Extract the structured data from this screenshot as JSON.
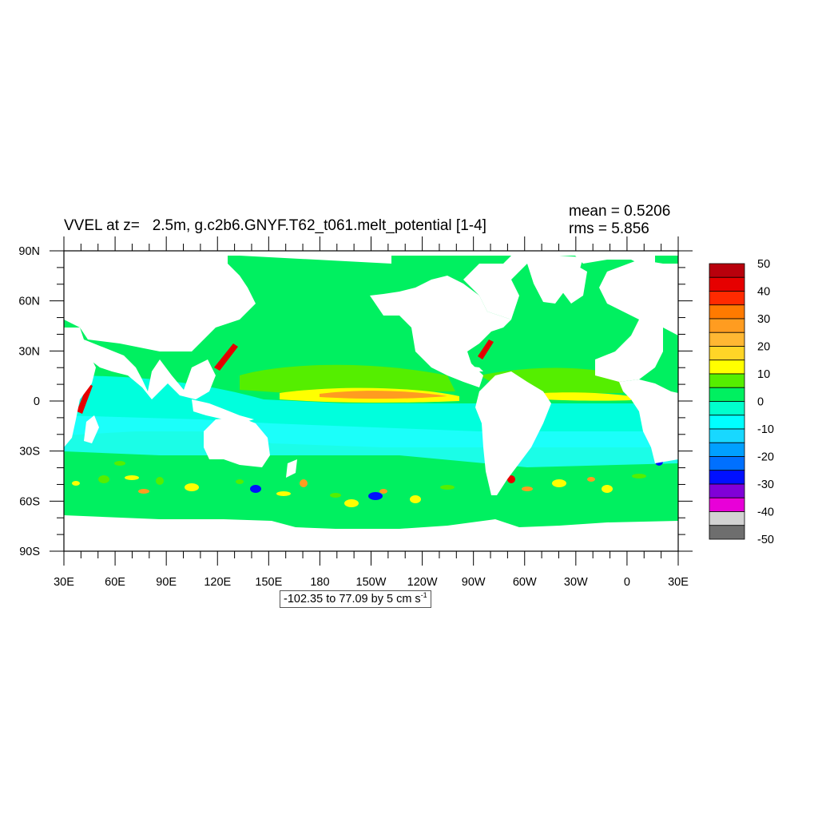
{
  "plot": {
    "title": "VVEL at z=   2.5m, g.c2b6.GNYF.T62_t061.melt_potential [1-4]",
    "mean": "mean = 0.5206",
    "rms": "rms = 5.856",
    "contour_info": "-102.35 to 77.09 by 5 cm s",
    "contour_info_sup": "-1"
  },
  "axes": {
    "lat_ticks": [
      "90N",
      "60N",
      "30N",
      "0",
      "30S",
      "60S",
      "90S"
    ],
    "lon_ticks": [
      "30E",
      "60E",
      "90E",
      "120E",
      "150E",
      "180",
      "150W",
      "120W",
      "90W",
      "60W",
      "30W",
      "0",
      "30E"
    ]
  },
  "colorbar": {
    "labels": [
      "50",
      "40",
      "30",
      "20",
      "10",
      "0",
      "-10",
      "-20",
      "-30",
      "-40",
      "-50"
    ],
    "colors": [
      "#b8000c",
      "#e60000",
      "#ff2a00",
      "#ff7a00",
      "#ff9c20",
      "#ffb733",
      "#ffd527",
      "#ffff00",
      "#55ee00",
      "#00f060",
      "#00ffcc",
      "#00ffff",
      "#18d8ff",
      "#00a0ff",
      "#0070ff",
      "#0010ff",
      "#8000d8",
      "#e800d8",
      "#d2d2d2",
      "#6e6e6e"
    ]
  },
  "map_colors": {
    "green": "#00f060",
    "cyan": "#00ffdd",
    "light_cyan": "#20ffff",
    "lime": "#55ee00",
    "yellow": "#ffff00",
    "orange": "#ff9c20",
    "red": "#e60000",
    "blue": "#0010ff",
    "land": "#ffffff"
  }
}
